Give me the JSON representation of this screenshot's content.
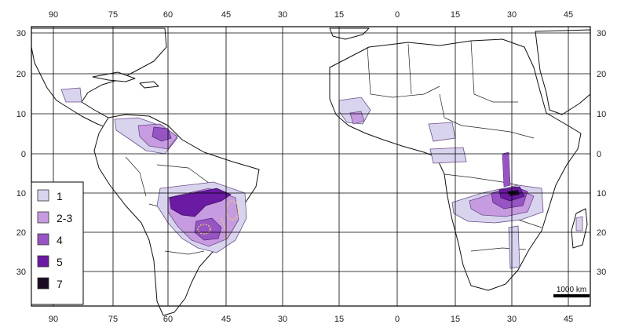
{
  "axes": {
    "longitude_labels": [
      "90",
      "75",
      "60",
      "45",
      "30",
      "15",
      "0",
      "15",
      "30",
      "45"
    ],
    "latitude_labels": [
      "30",
      "20",
      "10",
      "0",
      "10",
      "20",
      "30"
    ]
  },
  "legend": {
    "entries": [
      {
        "label": "1",
        "color": "#d9d4ee"
      },
      {
        "label": "2-3",
        "color": "#c79be0"
      },
      {
        "label": "4",
        "color": "#9655c3"
      },
      {
        "label": "5",
        "color": "#6a1aa3"
      },
      {
        "label": "7",
        "color": "#1a0c22"
      }
    ]
  },
  "scale_bar": {
    "label": "1000 km"
  },
  "colors": {
    "level1": "#d9d4ee",
    "level23": "#c79be0",
    "level4": "#9655c3",
    "level5": "#6a1aa3",
    "level7": "#1a0c22",
    "dots": "#f3d36a"
  }
}
